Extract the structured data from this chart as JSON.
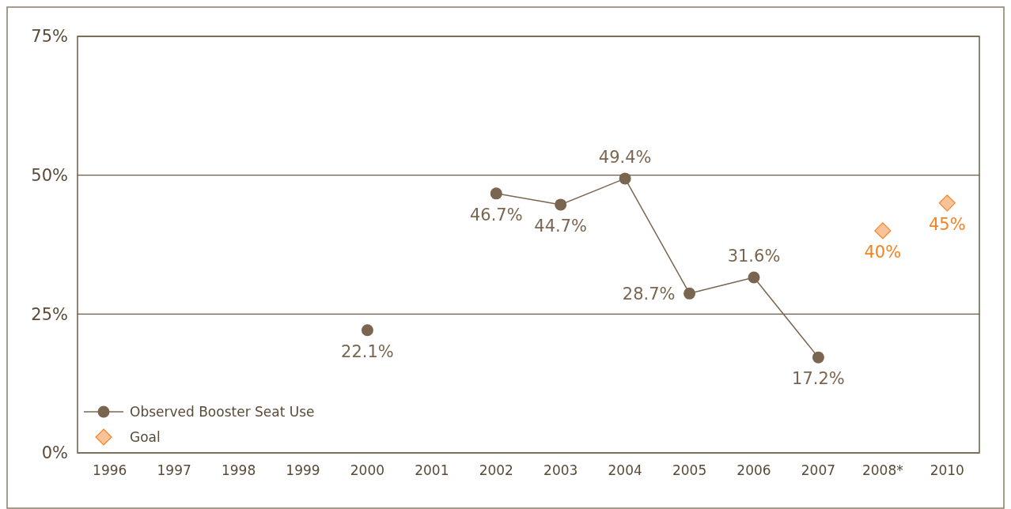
{
  "chart_data": {
    "type": "line",
    "categories": [
      "1996",
      "1997",
      "1998",
      "1999",
      "2000",
      "2001",
      "2002",
      "2003",
      "2004",
      "2005",
      "2006",
      "2007",
      "2008*",
      "2010"
    ],
    "series": [
      {
        "name": "Observed Booster Seat Use",
        "color": "#7a6650",
        "marker": "circle",
        "values": [
          null,
          null,
          null,
          null,
          22.1,
          null,
          46.7,
          44.7,
          49.4,
          28.7,
          31.6,
          17.2,
          null,
          null
        ],
        "value_labels": [
          null,
          null,
          null,
          null,
          "22.1%",
          null,
          "46.7%",
          "44.7%",
          "49.4%",
          "28.7%",
          "31.6%",
          "17.2%",
          null,
          null
        ]
      },
      {
        "name": "Goal",
        "type": "scatter",
        "color": "#f58220",
        "marker": "diamond",
        "values": [
          null,
          null,
          null,
          null,
          null,
          null,
          null,
          null,
          null,
          null,
          null,
          null,
          40,
          45
        ],
        "value_labels": [
          null,
          null,
          null,
          null,
          null,
          null,
          null,
          null,
          null,
          null,
          null,
          null,
          "40%",
          "45%"
        ]
      }
    ],
    "ylim": [
      0,
      75
    ],
    "yticks": [
      {
        "value": 0,
        "label": "0%"
      },
      {
        "value": 25,
        "label": "25%"
      },
      {
        "value": 50,
        "label": "50%"
      },
      {
        "value": 75,
        "label": "75%"
      }
    ],
    "grid": "y",
    "legend": "bottom left"
  }
}
